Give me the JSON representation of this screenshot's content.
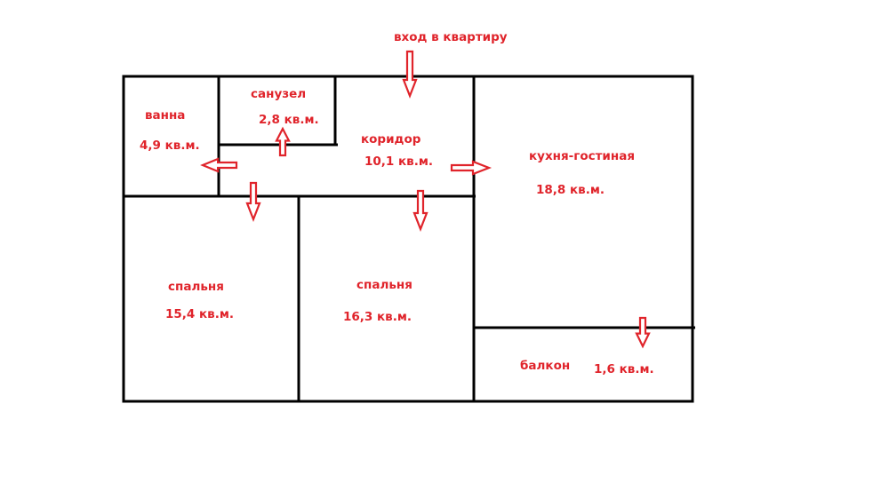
{
  "entrance": {
    "label": "вход в квартиру",
    "icon": "arrow-down-icon"
  },
  "rooms": [
    {
      "id": "bath",
      "name": "ванна",
      "area": "4,9 кв.м."
    },
    {
      "id": "toilet",
      "name": "санузел",
      "area": "2,8 кв.м."
    },
    {
      "id": "corridor",
      "name": "коридор",
      "area": "10,1 кв.м."
    },
    {
      "id": "kitchen",
      "name": "кухня-гостиная",
      "area": "18,8 кв.м."
    },
    {
      "id": "bedroom1",
      "name": "спальня",
      "area": "15,4 кв.м."
    },
    {
      "id": "bedroom2",
      "name": "спальня",
      "area": "16,3 кв.м."
    },
    {
      "id": "balcony",
      "name": "балкон",
      "area": "1,6 кв.м."
    }
  ],
  "colors": {
    "walls": "#000000",
    "labels": "#e0242b"
  }
}
